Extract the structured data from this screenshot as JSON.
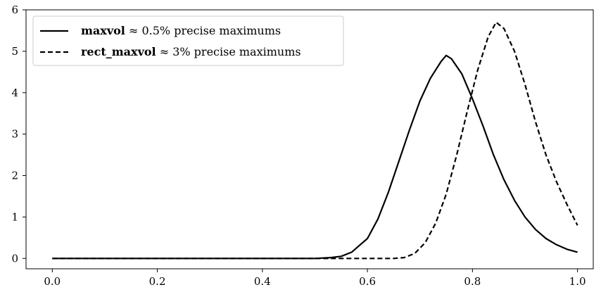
{
  "chart_data": {
    "type": "line",
    "title": "",
    "xlabel": "",
    "ylabel": "",
    "xlim": [
      -0.05,
      1.03
    ],
    "ylim": [
      -0.25,
      6.0
    ],
    "x_ticks": [
      0.0,
      0.2,
      0.4,
      0.6,
      0.8,
      1.0
    ],
    "x_tick_labels": [
      "0.0",
      "0.2",
      "0.4",
      "0.6",
      "0.8",
      "1.0"
    ],
    "y_ticks": [
      0,
      1,
      2,
      3,
      4,
      5,
      6
    ],
    "y_tick_labels": [
      "0",
      "1",
      "2",
      "3",
      "4",
      "5",
      "6"
    ],
    "grid": false,
    "legend_position": "top-left",
    "series": [
      {
        "name_bold": "maxvol",
        "name_rest": " ≈ 0.5% precise maximums",
        "line_style": "solid",
        "color": "#000000",
        "points": [
          [
            0.0,
            0.0
          ],
          [
            0.5,
            0.0
          ],
          [
            0.53,
            0.02
          ],
          [
            0.55,
            0.05
          ],
          [
            0.57,
            0.15
          ],
          [
            0.6,
            0.48
          ],
          [
            0.62,
            0.95
          ],
          [
            0.64,
            1.6
          ],
          [
            0.66,
            2.35
          ],
          [
            0.68,
            3.1
          ],
          [
            0.7,
            3.8
          ],
          [
            0.72,
            4.35
          ],
          [
            0.74,
            4.75
          ],
          [
            0.75,
            4.9
          ],
          [
            0.76,
            4.82
          ],
          [
            0.78,
            4.45
          ],
          [
            0.8,
            3.85
          ],
          [
            0.82,
            3.2
          ],
          [
            0.84,
            2.5
          ],
          [
            0.86,
            1.9
          ],
          [
            0.88,
            1.4
          ],
          [
            0.9,
            1.0
          ],
          [
            0.92,
            0.7
          ],
          [
            0.94,
            0.48
          ],
          [
            0.96,
            0.33
          ],
          [
            0.98,
            0.22
          ],
          [
            1.0,
            0.15
          ]
        ]
      },
      {
        "name_bold": "rect_maxvol",
        "name_rest": " ≈ 3% precise maximums",
        "line_style": "dashed",
        "color": "#000000",
        "points": [
          [
            0.0,
            0.0
          ],
          [
            0.65,
            0.0
          ],
          [
            0.67,
            0.02
          ],
          [
            0.69,
            0.12
          ],
          [
            0.71,
            0.38
          ],
          [
            0.73,
            0.85
          ],
          [
            0.75,
            1.55
          ],
          [
            0.77,
            2.5
          ],
          [
            0.79,
            3.55
          ],
          [
            0.81,
            4.55
          ],
          [
            0.83,
            5.35
          ],
          [
            0.845,
            5.7
          ],
          [
            0.86,
            5.55
          ],
          [
            0.88,
            5.0
          ],
          [
            0.9,
            4.2
          ],
          [
            0.92,
            3.3
          ],
          [
            0.94,
            2.5
          ],
          [
            0.96,
            1.85
          ],
          [
            0.98,
            1.3
          ],
          [
            1.0,
            0.8
          ]
        ]
      }
    ]
  }
}
